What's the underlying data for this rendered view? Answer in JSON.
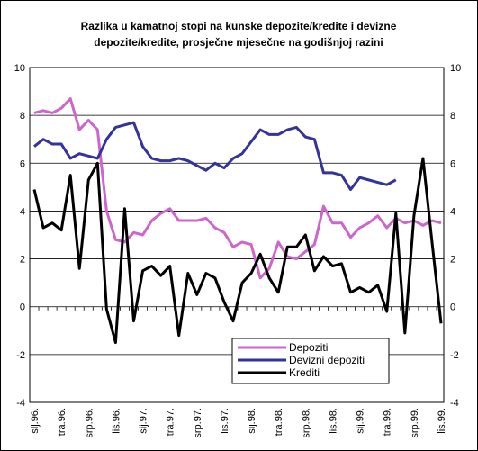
{
  "chart_data": {
    "type": "line",
    "title": [
      "Razlika u kamatnoj stopi na kunske depozite/kredite i devizne",
      "depozite/kredite, prosječne mjesečne na godišnjoj razini"
    ],
    "categories": [
      "sij.96.",
      null,
      null,
      "tra.96.",
      null,
      null,
      "srp.96.",
      null,
      null,
      "lis.96.",
      null,
      null,
      "sij.97.",
      null,
      null,
      "tra.97.",
      null,
      null,
      "srp.97.",
      null,
      null,
      "lis.97.",
      null,
      null,
      "sij.98.",
      null,
      null,
      "tra.98.",
      null,
      null,
      "srp.98.",
      null,
      null,
      "lis.98.",
      null,
      null,
      "sij.99.",
      null,
      null,
      "tra.99.",
      null,
      null,
      "srp.99.",
      null,
      null,
      "lis.99."
    ],
    "series": [
      {
        "name": "Depoziti",
        "color": "#cc66cc",
        "values": [
          8.1,
          8.2,
          8.1,
          8.3,
          8.7,
          7.4,
          7.8,
          7.4,
          4.0,
          2.8,
          2.7,
          3.1,
          3.0,
          3.6,
          3.9,
          4.1,
          3.6,
          3.6,
          3.6,
          3.7,
          3.3,
          3.1,
          2.5,
          2.7,
          2.6,
          1.2,
          1.6,
          2.7,
          2.1,
          2.0,
          2.3,
          2.6,
          4.2,
          3.5,
          3.5,
          2.9,
          3.3,
          3.5,
          3.8,
          3.3,
          3.7,
          3.5,
          3.6,
          3.4,
          3.6,
          3.5
        ]
      },
      {
        "name": "Devizni depoziti",
        "color": "#333399",
        "values": [
          6.7,
          7.0,
          6.8,
          6.8,
          6.2,
          6.4,
          6.3,
          6.2,
          7.0,
          7.5,
          7.6,
          7.7,
          6.7,
          6.2,
          6.1,
          6.1,
          6.2,
          6.1,
          5.9,
          5.7,
          6.0,
          5.8,
          6.2,
          6.4,
          6.9,
          7.4,
          7.2,
          7.2,
          7.4,
          7.5,
          7.1,
          7.0,
          5.6,
          5.6,
          5.5,
          4.9,
          5.4,
          5.3,
          5.2,
          5.1,
          5.3,
          null,
          null,
          null,
          null,
          null
        ]
      },
      {
        "name": "Krediti",
        "color": "#000000",
        "values": [
          4.9,
          3.3,
          3.5,
          3.2,
          5.5,
          1.6,
          5.3,
          6.0,
          -0.1,
          -1.5,
          4.1,
          -0.6,
          1.5,
          1.7,
          1.3,
          1.7,
          -1.2,
          1.4,
          0.5,
          1.4,
          1.2,
          0.2,
          -0.6,
          1.0,
          1.4,
          2.2,
          1.2,
          0.6,
          2.5,
          2.5,
          3.0,
          1.5,
          2.1,
          1.7,
          1.8,
          0.6,
          0.8,
          0.6,
          0.9,
          -0.2,
          3.9,
          -1.1,
          3.8,
          6.2,
          2.7,
          -0.7
        ]
      }
    ],
    "ylim": [
      -4,
      10
    ],
    "yticks": [
      -4,
      -2,
      0,
      2,
      4,
      6,
      8,
      10
    ],
    "y2lim": [
      -4,
      10
    ],
    "y2ticks": [
      -4,
      -2,
      0,
      2,
      4,
      6,
      8,
      10
    ],
    "grid": true,
    "legend": "bottom-center"
  }
}
